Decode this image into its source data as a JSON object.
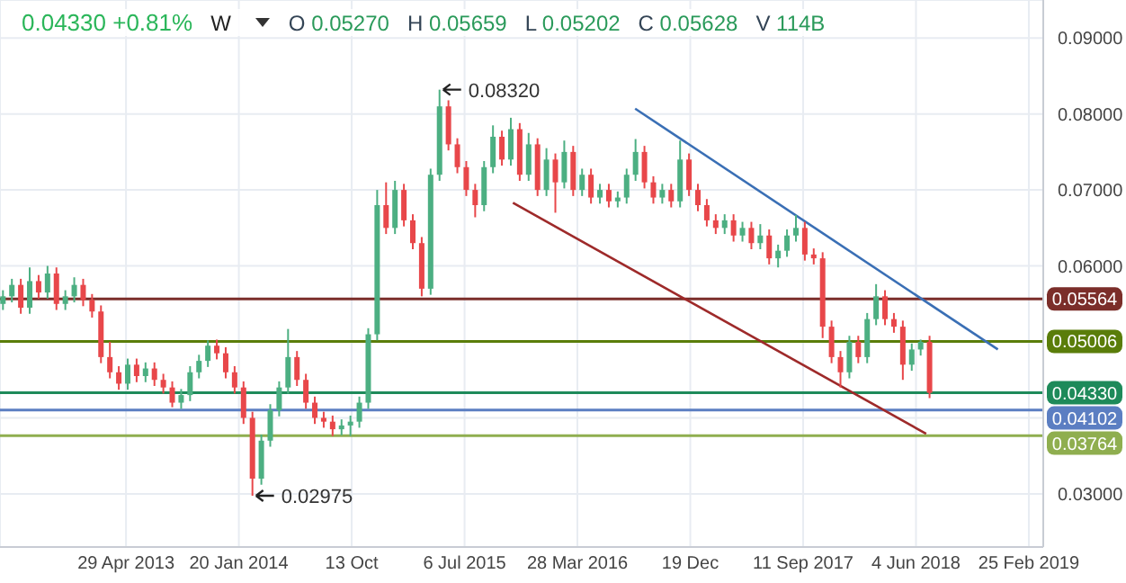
{
  "chart_data": {
    "type": "candlestick",
    "annotations": [
      "0.04330 +0.81%",
      "W",
      "O 0.05270",
      "H 0.05659",
      "L 0.05202",
      "C 0.05628",
      "V 114B",
      {
        "text": "0.08320",
        "x": "2015-05-08",
        "y": 0.0832
      },
      {
        "text": "0.02975",
        "x": "2014-02-21",
        "y": 0.02975
      }
    ],
    "grid": true,
    "xlim": [
      "2012-07-06",
      "2019-03-31"
    ],
    "xticks": [
      {
        "value": "2013-04-29",
        "label": "29 Apr 2013"
      },
      {
        "value": "2014-01-20",
        "label": "20 Jan 2014"
      },
      {
        "value": "2014-10-13",
        "label": "13 Oct"
      },
      {
        "value": "2015-07-06",
        "label": "6 Jul 2015"
      },
      {
        "value": "2016-03-28",
        "label": "28 Mar 2016"
      },
      {
        "value": "2016-12-19",
        "label": "19 Dec"
      },
      {
        "value": "2017-09-11",
        "label": "11 Sep 2017"
      },
      {
        "value": "2018-06-04",
        "label": "4 Jun 2018"
      },
      {
        "value": "2019-02-25",
        "label": "25 Feb 2019"
      }
    ],
    "ylim": [
      0.023,
      0.095
    ],
    "yticks": [
      {
        "value": 0.03,
        "label": "0.03000"
      },
      {
        "value": 0.04,
        "label": null
      },
      {
        "value": 0.05,
        "label": null
      },
      {
        "value": 0.06,
        "label": "0.06000"
      },
      {
        "value": 0.07,
        "label": "0.07000"
      },
      {
        "value": 0.08,
        "label": "0.08000"
      },
      {
        "value": 0.09,
        "label": "0.09000"
      }
    ],
    "ref_lines": [
      {
        "axis": "y",
        "value": 0.05564,
        "label": "0.05564",
        "color": "#7b2e2a"
      },
      {
        "axis": "y",
        "value": 0.05006,
        "label": "0.05006",
        "color": "#5a7d0a"
      },
      {
        "axis": "y",
        "value": 0.0433,
        "label": "0.04330",
        "color": "#1e8a5a"
      },
      {
        "axis": "y",
        "value": 0.04102,
        "label": "0.04102",
        "color": "#5b7ec2"
      },
      {
        "axis": "y",
        "value": 0.03764,
        "label": "0.03764",
        "color": "#8fae4f"
      }
    ],
    "series": [
      {
        "x": [
          "2012-07-13",
          "2012-08-03",
          "2012-08-24",
          "2012-09-14",
          "2012-10-05",
          "2012-10-26",
          "2012-11-16",
          "2012-12-07",
          "2012-12-28",
          "2013-01-18",
          "2013-02-08",
          "2013-03-01",
          "2013-03-22",
          "2013-04-12",
          "2013-05-03",
          "2013-05-24",
          "2013-06-14",
          "2013-07-05",
          "2013-07-26",
          "2013-08-16",
          "2013-09-06",
          "2013-09-27",
          "2013-10-18",
          "2013-11-08",
          "2013-11-29",
          "2013-12-20",
          "2014-01-10",
          "2014-01-31",
          "2014-02-21",
          "2014-03-14",
          "2014-04-04",
          "2014-04-25",
          "2014-05-16",
          "2014-06-06",
          "2014-06-27",
          "2014-07-18",
          "2014-08-08",
          "2014-08-29",
          "2014-09-19",
          "2014-10-10",
          "2014-10-31",
          "2014-11-21",
          "2014-12-12",
          "2015-01-02",
          "2015-01-23",
          "2015-02-13",
          "2015-03-06",
          "2015-03-27",
          "2015-04-17",
          "2015-05-08",
          "2015-05-29",
          "2015-06-19",
          "2015-07-10",
          "2015-07-31",
          "2015-08-21",
          "2015-09-11",
          "2015-10-02",
          "2015-10-23",
          "2015-11-13",
          "2015-12-04",
          "2015-12-25",
          "2016-01-15",
          "2016-02-05",
          "2016-02-26",
          "2016-03-18",
          "2016-04-08",
          "2016-04-29",
          "2016-05-20",
          "2016-06-10",
          "2016-07-01",
          "2016-07-22",
          "2016-08-12",
          "2016-09-02",
          "2016-09-23",
          "2016-10-14",
          "2016-11-04",
          "2016-11-25",
          "2016-12-16",
          "2017-01-06",
          "2017-01-27",
          "2017-02-17",
          "2017-03-10",
          "2017-03-31",
          "2017-04-21",
          "2017-05-12",
          "2017-06-02",
          "2017-06-23",
          "2017-07-14",
          "2017-08-04",
          "2017-08-25",
          "2017-09-15",
          "2017-10-06",
          "2017-10-27",
          "2017-11-17",
          "2017-12-08",
          "2017-12-29",
          "2018-01-19",
          "2018-02-09",
          "2018-03-02",
          "2018-03-23",
          "2018-04-13",
          "2018-05-04",
          "2018-05-25",
          "2018-06-15",
          "2018-07-06"
        ],
        "ohlc": [
          [
            0.055,
            0.0568,
            0.0542,
            0.056
          ],
          [
            0.056,
            0.0583,
            0.0552,
            0.0575
          ],
          [
            0.0575,
            0.0583,
            0.0537,
            0.0545
          ],
          [
            0.0545,
            0.0598,
            0.0537,
            0.058
          ],
          [
            0.058,
            0.0588,
            0.0557,
            0.0565
          ],
          [
            0.0565,
            0.06,
            0.0557,
            0.059
          ],
          [
            0.059,
            0.0598,
            0.0542,
            0.055
          ],
          [
            0.055,
            0.0568,
            0.0542,
            0.056
          ],
          [
            0.056,
            0.0585,
            0.0552,
            0.0575
          ],
          [
            0.0575,
            0.0583,
            0.0547,
            0.0555
          ],
          [
            0.0555,
            0.0563,
            0.0532,
            0.054
          ],
          [
            0.054,
            0.0548,
            0.0472,
            0.048
          ],
          [
            0.048,
            0.05,
            0.0452,
            0.046
          ],
          [
            0.046,
            0.0468,
            0.0437,
            0.0445
          ],
          [
            0.0445,
            0.0478,
            0.0437,
            0.047
          ],
          [
            0.047,
            0.0478,
            0.0447,
            0.0455
          ],
          [
            0.0455,
            0.0473,
            0.0447,
            0.0465
          ],
          [
            0.0465,
            0.0473,
            0.0442,
            0.045
          ],
          [
            0.045,
            0.0458,
            0.0432,
            0.044
          ],
          [
            0.044,
            0.0448,
            0.0414,
            0.042
          ],
          [
            0.042,
            0.0438,
            0.0412,
            0.043
          ],
          [
            0.043,
            0.0468,
            0.0422,
            0.046
          ],
          [
            0.046,
            0.0483,
            0.0452,
            0.0475
          ],
          [
            0.0475,
            0.0502,
            0.0467,
            0.0495
          ],
          [
            0.0495,
            0.0503,
            0.0477,
            0.0485
          ],
          [
            0.0485,
            0.0493,
            0.0452,
            0.046
          ],
          [
            0.046,
            0.0468,
            0.0432,
            0.044
          ],
          [
            0.044,
            0.0448,
            0.0392,
            0.04
          ],
          [
            0.04,
            0.0408,
            0.02975,
            0.032
          ],
          [
            0.032,
            0.0378,
            0.0312,
            0.037
          ],
          [
            0.037,
            0.0418,
            0.0362,
            0.041
          ],
          [
            0.041,
            0.0448,
            0.0402,
            0.044
          ],
          [
            0.044,
            0.0517,
            0.0432,
            0.048
          ],
          [
            0.048,
            0.0488,
            0.0442,
            0.045
          ],
          [
            0.045,
            0.0458,
            0.0412,
            0.042
          ],
          [
            0.042,
            0.0428,
            0.0392,
            0.04
          ],
          [
            0.04,
            0.0408,
            0.0387,
            0.0395
          ],
          [
            0.0395,
            0.0403,
            0.0376,
            0.0385
          ],
          [
            0.0385,
            0.0398,
            0.0377,
            0.039
          ],
          [
            0.039,
            0.0403,
            0.0376,
            0.0395
          ],
          [
            0.0395,
            0.0428,
            0.0387,
            0.042
          ],
          [
            0.042,
            0.0518,
            0.0412,
            0.051
          ],
          [
            0.051,
            0.07,
            0.0502,
            0.068
          ],
          [
            0.068,
            0.071,
            0.0642,
            0.065
          ],
          [
            0.065,
            0.0712,
            0.0642,
            0.07
          ],
          [
            0.07,
            0.0708,
            0.0652,
            0.066
          ],
          [
            0.066,
            0.0668,
            0.0622,
            0.063
          ],
          [
            0.063,
            0.0638,
            0.056,
            0.057
          ],
          [
            0.057,
            0.0728,
            0.0562,
            0.072
          ],
          [
            0.072,
            0.0832,
            0.0712,
            0.081
          ],
          [
            0.081,
            0.0818,
            0.0752,
            0.076
          ],
          [
            0.076,
            0.0768,
            0.0722,
            0.073
          ],
          [
            0.073,
            0.0738,
            0.0692,
            0.07
          ],
          [
            0.07,
            0.0708,
            0.0664,
            0.068
          ],
          [
            0.068,
            0.0738,
            0.0672,
            0.073
          ],
          [
            0.073,
            0.0785,
            0.0722,
            0.077
          ],
          [
            0.077,
            0.0778,
            0.0732,
            0.074
          ],
          [
            0.074,
            0.0795,
            0.0732,
            0.078
          ],
          [
            0.078,
            0.0788,
            0.0712,
            0.072
          ],
          [
            0.072,
            0.0775,
            0.0712,
            0.076
          ],
          [
            0.076,
            0.0768,
            0.0692,
            0.07
          ],
          [
            0.07,
            0.0755,
            0.0692,
            0.074
          ],
          [
            0.074,
            0.0748,
            0.067,
            0.071
          ],
          [
            0.071,
            0.0765,
            0.0702,
            0.075
          ],
          [
            0.075,
            0.0758,
            0.0692,
            0.07
          ],
          [
            0.07,
            0.0728,
            0.0692,
            0.072
          ],
          [
            0.072,
            0.0728,
            0.0682,
            0.069
          ],
          [
            0.069,
            0.0708,
            0.0682,
            0.07
          ],
          [
            0.07,
            0.0708,
            0.0677,
            0.0685
          ],
          [
            0.0685,
            0.0698,
            0.0677,
            0.069
          ],
          [
            0.069,
            0.0728,
            0.0682,
            0.072
          ],
          [
            0.072,
            0.0767,
            0.0712,
            0.075
          ],
          [
            0.075,
            0.0758,
            0.0702,
            0.071
          ],
          [
            0.071,
            0.0718,
            0.0682,
            0.069
          ],
          [
            0.069,
            0.0708,
            0.0682,
            0.07
          ],
          [
            0.07,
            0.0708,
            0.0677,
            0.0685
          ],
          [
            0.0685,
            0.0765,
            0.0677,
            0.074
          ],
          [
            0.074,
            0.0748,
            0.0692,
            0.07
          ],
          [
            0.07,
            0.0708,
            0.0672,
            0.068
          ],
          [
            0.068,
            0.0688,
            0.0652,
            0.066
          ],
          [
            0.066,
            0.0668,
            0.0642,
            0.065
          ],
          [
            0.065,
            0.0668,
            0.0642,
            0.066
          ],
          [
            0.066,
            0.0668,
            0.0632,
            0.064
          ],
          [
            0.064,
            0.0658,
            0.0632,
            0.065
          ],
          [
            0.065,
            0.0658,
            0.0622,
            0.063
          ],
          [
            0.063,
            0.0655,
            0.0622,
            0.064
          ],
          [
            0.064,
            0.0648,
            0.0602,
            0.061
          ],
          [
            0.061,
            0.0628,
            0.0598,
            0.062
          ],
          [
            0.062,
            0.0648,
            0.0612,
            0.064
          ],
          [
            0.064,
            0.0667,
            0.0632,
            0.065
          ],
          [
            0.065,
            0.0658,
            0.0607,
            0.0615
          ],
          [
            0.0615,
            0.0623,
            0.0602,
            0.061
          ],
          [
            0.061,
            0.0618,
            0.0505,
            0.052
          ],
          [
            0.052,
            0.0528,
            0.0472,
            0.048
          ],
          [
            0.048,
            0.0488,
            0.044,
            0.046
          ],
          [
            0.046,
            0.0508,
            0.0452,
            0.05
          ],
          [
            0.05,
            0.0508,
            0.0472,
            0.048
          ],
          [
            0.048,
            0.0538,
            0.0472,
            0.053
          ],
          [
            0.053,
            0.0576,
            0.0522,
            0.056
          ],
          [
            0.056,
            0.0568,
            0.0522,
            0.053
          ],
          [
            0.053,
            0.0538,
            0.0512,
            0.052
          ],
          [
            0.052,
            0.0528,
            0.045,
            0.047
          ],
          [
            0.047,
            0.0498,
            0.0462,
            0.049
          ],
          [
            0.049,
            0.0503,
            0.0482,
            0.05
          ],
          [
            0.05,
            0.0508,
            0.0426,
            0.0433
          ]
        ]
      },
      {
        "type": "line",
        "color": "#3a6fb5",
        "x": [
          "2016-08-11",
          "2018-12-14"
        ],
        "values": [
          0.0807,
          0.049
        ]
      },
      {
        "type": "line",
        "color": "#9e2a2a",
        "x": [
          "2015-10-28",
          "2018-06-28"
        ],
        "values": [
          0.0683,
          0.0379
        ]
      }
    ]
  }
}
